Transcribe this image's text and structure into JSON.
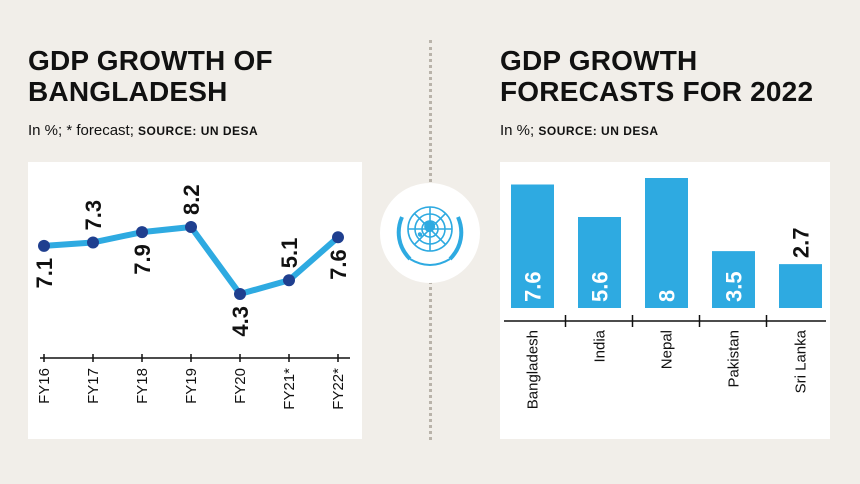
{
  "left": {
    "title": "GDP GROWTH OF\nBANGLADESH",
    "subtitle_text": "In %; * forecast; ",
    "subtitle_source": "SOURCE: UN DESA"
  },
  "right": {
    "title": "GDP GROWTH\nFORECASTS FOR 2022",
    "subtitle_text": "In %; ",
    "subtitle_source": "SOURCE: UN DESA"
  },
  "colors": {
    "accent": "#2eaae1",
    "marker": "#1f3f8f",
    "background": "#f1eee9",
    "panel": "#ffffff"
  },
  "emblem_icon": "un-emblem-icon",
  "chart_data": [
    {
      "type": "line",
      "x": [
        "FY16",
        "FY17",
        "FY18",
        "FY19",
        "FY20",
        "FY21*",
        "FY22*"
      ],
      "values": [
        7.1,
        7.3,
        7.9,
        8.2,
        4.3,
        5.1,
        7.6
      ],
      "labels": [
        "7.1",
        "7.3",
        "7.9",
        "8.2",
        "4.3",
        "5.1",
        "7.6"
      ],
      "title": "GDP GROWTH OF BANGLADESH",
      "grid": false
    },
    {
      "type": "bar",
      "categories": [
        "Bangladesh",
        "India",
        "Nepal",
        "Pakistan",
        "Sri Lanka"
      ],
      "values": [
        7.6,
        5.6,
        8,
        3.5,
        2.7
      ],
      "labels": [
        "7.6",
        "5.6",
        "8",
        "3.5",
        "2.7"
      ],
      "title": "GDP GROWTH FORECASTS FOR 2022",
      "grid": false
    }
  ]
}
